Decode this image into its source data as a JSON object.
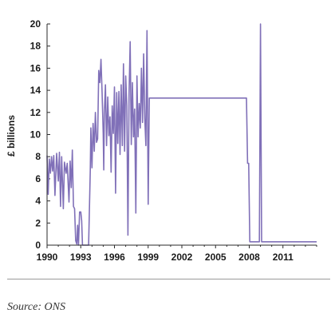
{
  "chart_data": {
    "type": "line",
    "ylabel": "£ billions",
    "ylim": [
      0,
      20
    ],
    "xlim": [
      1990,
      2014
    ],
    "yticks": [
      0,
      2,
      4,
      6,
      8,
      10,
      12,
      14,
      16,
      18,
      20
    ],
    "xticks": [
      "1990",
      "1993",
      "1996",
      "1999",
      "2002",
      "2005",
      "2008",
      "2011"
    ],
    "xtick_values": [
      1990,
      1993,
      1996,
      1999,
      2002,
      2005,
      2008,
      2011
    ],
    "grid": false,
    "legend": "none",
    "line_color": "#8070b8",
    "series": [
      {
        "x": [
          1990.0,
          1990.1,
          1990.2,
          1990.3,
          1990.4,
          1990.5,
          1990.6,
          1990.7,
          1990.85,
          1991.0,
          1991.1,
          1991.2,
          1991.3,
          1991.45,
          1991.55,
          1991.7,
          1991.8,
          1991.95,
          1992.05,
          1992.15,
          1992.25,
          1992.35,
          1992.45,
          1992.55,
          1992.65,
          1992.72,
          1992.8,
          1992.9,
          1993.0,
          1993.08,
          1993.15,
          1993.2,
          1993.25,
          1993.35,
          1993.45,
          1993.55,
          1993.7,
          1993.85,
          1993.9,
          1994.0,
          1994.1,
          1994.2,
          1994.3,
          1994.4,
          1994.5,
          1994.6,
          1994.7,
          1994.8,
          1994.9,
          1995.0,
          1995.05,
          1995.1,
          1995.2,
          1995.3,
          1995.4,
          1995.5,
          1995.6,
          1995.7,
          1995.8,
          1995.9,
          1996.0,
          1996.1,
          1996.2,
          1996.3,
          1996.4,
          1996.5,
          1996.6,
          1996.7,
          1996.8,
          1996.9,
          1997.0,
          1997.1,
          1997.2,
          1997.3,
          1997.4,
          1997.5,
          1997.6,
          1997.7,
          1997.8,
          1997.9,
          1998.0,
          1998.1,
          1998.2,
          1998.3,
          1998.4,
          1998.5,
          1998.6,
          1998.7,
          1998.8,
          1998.9,
          1999.0,
          1999.1,
          1999.2,
          1999.3,
          1999.4,
          1999.5,
          1999.6,
          1999.7,
          1999.75,
          1999.8,
          1999.9,
          2000.0,
          2007.75,
          2007.85,
          2007.95,
          2008.05,
          2008.9,
          2009.0,
          2009.1,
          2009.2,
          2014.0
        ],
        "y": [
          8.1,
          4.6,
          7.8,
          6.5,
          8.0,
          6.7,
          8.1,
          4.5,
          8.3,
          5.8,
          8.4,
          3.5,
          8.0,
          3.3,
          7.5,
          6.5,
          7.4,
          3.9,
          7.6,
          5.2,
          8.6,
          3.5,
          3.3,
          0.4,
          0.1,
          1.8,
          0.0,
          3.0,
          3.0,
          2.2,
          0.0,
          0.0,
          0.0,
          0.0,
          0.0,
          0.0,
          0.0,
          6.8,
          10.6,
          7.0,
          11.0,
          8.5,
          12.0,
          9.3,
          9.6,
          15.8,
          14.7,
          16.8,
          13.8,
          10.1,
          6.8,
          11.9,
          14.5,
          9.0,
          13.4,
          9.9,
          11.6,
          6.6,
          12.6,
          10.1,
          14.3,
          4.7,
          13.8,
          9.2,
          13.9,
          8.2,
          14.5,
          9.0,
          16.4,
          8.5,
          15.3,
          12.6,
          0.9,
          13.6,
          18.4,
          9.1,
          14.7,
          9.8,
          12.3,
          2.9,
          15.3,
          9.8,
          12.8,
          10.6,
          16.0,
          11.1,
          17.3,
          11.5,
          9.0,
          19.4,
          3.7,
          13.3,
          13.3,
          13.3,
          13.3,
          13.3,
          13.3,
          13.3,
          13.3,
          13.3,
          13.3,
          13.3,
          13.3,
          7.4,
          7.4,
          0.3,
          0.3,
          20.0,
          0.3,
          0.3,
          0.3
        ]
      }
    ]
  },
  "footer": {
    "source": "Source: ONS"
  }
}
